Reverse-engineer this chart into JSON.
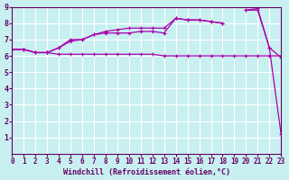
{
  "background_color": "#c8f0f0",
  "grid_color": "#ffffff",
  "line_color": "#aa00aa",
  "xlabel": "Windchill (Refroidissement éolien,°C)",
  "xlim": [
    0,
    23
  ],
  "ylim": [
    0,
    9
  ],
  "xticks": [
    0,
    1,
    2,
    3,
    4,
    5,
    6,
    7,
    8,
    9,
    10,
    11,
    12,
    13,
    14,
    15,
    16,
    17,
    18,
    19,
    20,
    21,
    22,
    23
  ],
  "yticks": [
    1,
    2,
    3,
    4,
    5,
    6,
    7,
    8,
    9
  ],
  "line1_x": [
    0,
    1,
    2,
    3,
    4,
    5,
    6,
    7,
    8,
    9,
    10,
    11,
    12,
    13,
    14,
    15,
    16,
    17,
    18,
    19,
    20,
    21,
    22,
    23
  ],
  "line1_y": [
    6.4,
    6.4,
    6.2,
    6.2,
    6.1,
    6.1,
    6.1,
    6.1,
    6.1,
    6.1,
    6.1,
    6.1,
    6.1,
    6.0,
    6.0,
    6.0,
    6.0,
    6.0,
    6.0,
    6.0,
    6.0,
    6.0,
    6.0,
    6.0
  ],
  "line2_x": [
    0,
    1,
    2,
    3,
    4,
    5,
    6,
    7,
    8,
    9,
    10,
    11,
    12,
    13,
    14,
    15,
    16,
    17,
    18,
    19,
    20,
    21,
    22,
    23
  ],
  "line2_y": [
    6.4,
    6.4,
    6.2,
    6.2,
    6.5,
    6.9,
    7.0,
    7.3,
    7.4,
    7.4,
    7.4,
    7.5,
    7.5,
    7.4,
    8.3,
    8.2,
    8.2,
    8.1,
    8.0,
    null,
    8.8,
    8.8,
    6.5,
    5.9
  ],
  "line3_x": [
    0,
    1,
    2,
    3,
    4,
    5,
    6,
    7,
    8,
    9,
    10,
    11,
    12,
    13,
    14,
    15,
    16,
    17,
    18,
    19,
    20,
    21,
    22,
    23
  ],
  "line3_y": [
    6.4,
    6.4,
    6.2,
    6.2,
    6.5,
    7.0,
    7.0,
    7.3,
    7.5,
    7.6,
    7.7,
    7.7,
    7.7,
    7.7,
    8.3,
    8.2,
    8.2,
    8.1,
    8.0,
    null,
    8.8,
    8.9,
    6.5,
    1.2
  ]
}
